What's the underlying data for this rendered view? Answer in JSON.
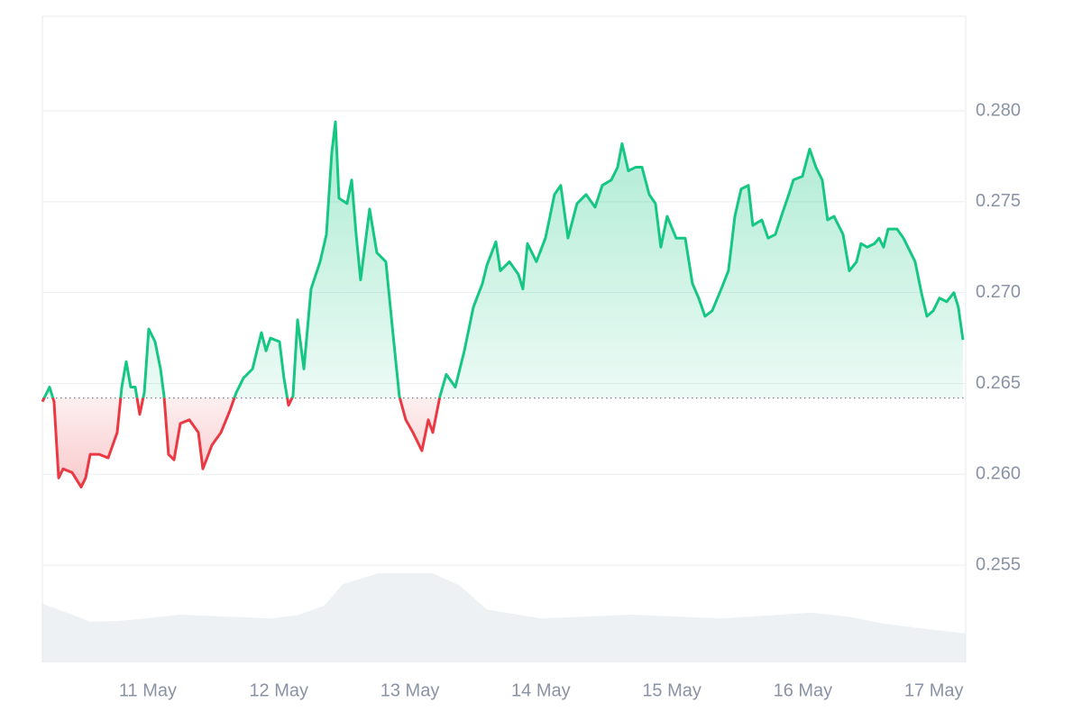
{
  "chart_data": {
    "type": "baseline-line",
    "x": [
      10.195,
      10.25,
      10.284,
      10.319,
      10.353,
      10.422,
      10.491,
      10.525,
      10.56,
      10.629,
      10.697,
      10.766,
      10.801,
      10.835,
      10.869,
      10.904,
      10.938,
      10.973,
      11.007,
      11.055,
      11.097,
      11.124,
      11.158,
      11.2,
      11.248,
      11.317,
      11.386,
      11.42,
      11.489,
      11.558,
      11.626,
      11.675,
      11.73,
      11.799,
      11.867,
      11.902,
      11.936,
      12.005,
      12.039,
      12.074,
      12.108,
      12.143,
      12.191,
      12.246,
      12.315,
      12.363,
      12.404,
      12.432,
      12.459,
      12.521,
      12.556,
      12.59,
      12.624,
      12.693,
      12.748,
      12.817,
      12.865,
      12.92,
      12.969,
      13.024,
      13.092,
      13.141,
      13.175,
      13.23,
      13.278,
      13.347,
      13.416,
      13.485,
      13.554,
      13.588,
      13.657,
      13.691,
      13.76,
      13.829,
      13.863,
      13.898,
      13.966,
      14.035,
      14.07,
      14.104,
      14.152,
      14.207,
      14.276,
      14.345,
      14.414,
      14.469,
      14.538,
      14.586,
      14.62,
      14.668,
      14.724,
      14.772,
      14.827,
      14.875,
      14.916,
      14.964,
      15.033,
      15.102,
      15.157,
      15.205,
      15.253,
      15.308,
      15.377,
      15.432,
      15.481,
      15.529,
      15.584,
      15.618,
      15.687,
      15.735,
      15.79,
      15.845,
      15.893,
      15.928,
      15.997,
      16.052,
      16.1,
      16.148,
      16.189,
      16.238,
      16.307,
      16.355,
      16.41,
      16.444,
      16.492,
      16.547,
      16.582,
      16.616,
      16.651,
      16.719,
      16.768,
      16.823,
      16.857,
      16.905,
      16.947,
      16.995,
      17.043,
      17.098,
      17.153,
      17.187,
      17.222
    ],
    "values": [
      0.264,
      0.2648,
      0.264,
      0.2598,
      0.2603,
      0.2601,
      0.2593,
      0.2598,
      0.2611,
      0.2611,
      0.2609,
      0.2623,
      0.2648,
      0.2662,
      0.2648,
      0.2648,
      0.2633,
      0.2645,
      0.268,
      0.2673,
      0.2658,
      0.2643,
      0.2611,
      0.2608,
      0.2628,
      0.263,
      0.2623,
      0.2603,
      0.2616,
      0.2623,
      0.2635,
      0.2645,
      0.2653,
      0.2658,
      0.2678,
      0.2668,
      0.2675,
      0.2673,
      0.2653,
      0.2638,
      0.2643,
      0.2685,
      0.2658,
      0.2702,
      0.2717,
      0.2732,
      0.2777,
      0.2794,
      0.2752,
      0.2749,
      0.2762,
      0.2732,
      0.2707,
      0.2746,
      0.2722,
      0.2717,
      0.2682,
      0.2643,
      0.263,
      0.2623,
      0.2613,
      0.263,
      0.2623,
      0.2643,
      0.2655,
      0.2648,
      0.2668,
      0.2692,
      0.2705,
      0.2715,
      0.2728,
      0.2712,
      0.2717,
      0.271,
      0.2702,
      0.2727,
      0.2717,
      0.273,
      0.2742,
      0.2754,
      0.2759,
      0.273,
      0.2749,
      0.2754,
      0.2747,
      0.2759,
      0.2762,
      0.2769,
      0.2782,
      0.2767,
      0.2769,
      0.2769,
      0.2754,
      0.2749,
      0.2725,
      0.2742,
      0.273,
      0.273,
      0.2705,
      0.2697,
      0.2687,
      0.269,
      0.2702,
      0.2712,
      0.2742,
      0.2757,
      0.2759,
      0.2737,
      0.274,
      0.273,
      0.2732,
      0.2744,
      0.2754,
      0.2762,
      0.2764,
      0.2779,
      0.2769,
      0.2762,
      0.274,
      0.2742,
      0.2732,
      0.2712,
      0.2717,
      0.2727,
      0.2725,
      0.2727,
      0.273,
      0.2725,
      0.2735,
      0.2735,
      0.273,
      0.2722,
      0.2717,
      0.27,
      0.2687,
      0.269,
      0.2697,
      0.2695,
      0.27,
      0.2692,
      0.2674
    ],
    "baseline": 0.2642,
    "up_color": "#16c784",
    "down_color": "#ea3943",
    "xlim": [
      10.195,
      17.243
    ],
    "xticks": [
      {
        "value": 11,
        "label": "11 May"
      },
      {
        "value": 12,
        "label": "12 May"
      },
      {
        "value": 13,
        "label": "13 May"
      },
      {
        "value": 14,
        "label": "14 May"
      },
      {
        "value": 15,
        "label": "15 May"
      },
      {
        "value": 16,
        "label": "16 May"
      },
      {
        "value": 17,
        "label": "17 May"
      }
    ],
    "ylim": [
      0.24965,
      0.28521
    ],
    "yticks": [
      0.255,
      {
        "value": 0.26,
        "label": "0.260"
      },
      0.265,
      {
        "value": 0.27,
        "label": "0.270"
      },
      0.275,
      {
        "value": 0.28,
        "label": "0.280"
      }
    ],
    "grid": true,
    "volume": {
      "color": "#eef1f4",
      "ylim": [
        0,
        100
      ],
      "x": [
        10.195,
        10.422,
        10.56,
        10.766,
        10.973,
        11.248,
        11.592,
        11.936,
        12.143,
        12.349,
        12.487,
        12.762,
        13.175,
        13.381,
        13.588,
        14.001,
        14.689,
        15.377,
        16.066,
        16.341,
        16.616,
        16.891,
        17.243
      ],
      "values": [
        9.1,
        7.4,
        6.3,
        6.4,
        6.8,
        7.4,
        7.1,
        6.8,
        7.3,
        8.8,
        12.1,
        13.8,
        13.8,
        11.9,
        8.2,
        6.8,
        7.4,
        6.8,
        7.7,
        7.1,
        6.0,
        5.3,
        4.5
      ]
    }
  }
}
